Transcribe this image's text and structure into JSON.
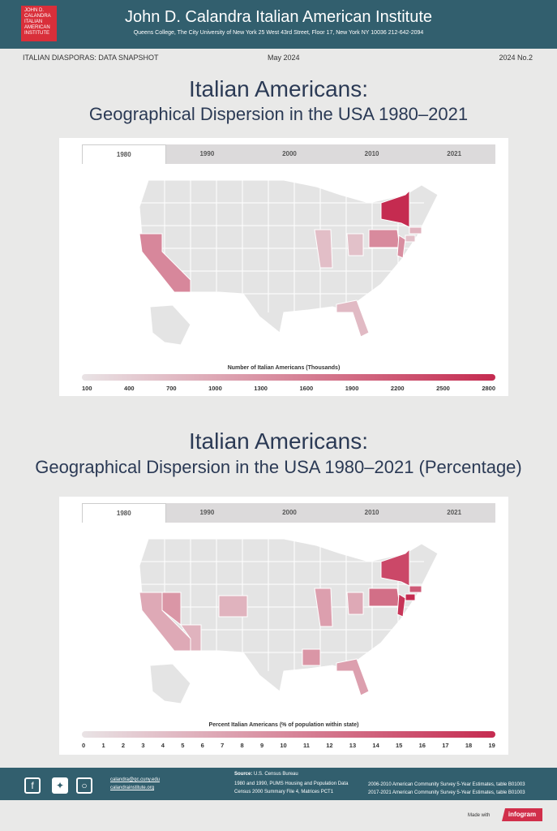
{
  "header": {
    "logo_text": [
      "JOHN D.",
      "CALANDRA",
      "ITALIAN",
      "AMERICAN",
      "INSTITUTE"
    ],
    "title": "John D. Calandra Italian American Institute",
    "subtitle": "Queens College, The City University of New York  25 West 43rd Street, Floor 17, New York NY 10036     212-642-2094"
  },
  "strip": {
    "left": "ITALIAN DIASPORAS: DATA SNAPSHOT",
    "center": "May 2024",
    "right": "2024  No.2"
  },
  "section1": {
    "title1": "Italian Americans:",
    "title2": "Geographical Dispersion in the USA 1980–2021",
    "tabs": [
      "1980",
      "1990",
      "2000",
      "2010",
      "2021"
    ],
    "active_tab": "1980",
    "legend_title": "Number of Italian Americans (Thousands)",
    "legend_ticks": [
      "100",
      "400",
      "700",
      "1000",
      "1300",
      "1600",
      "1900",
      "2200",
      "2500",
      "2800"
    ],
    "range": [
      100,
      2800
    ],
    "values": {
      "CA": 1450,
      "NY": 2800,
      "PA": 1400,
      "NJ": 1350,
      "IL": 650,
      "OH": 600,
      "FL": 700,
      "MA": 800,
      "CT": 600
    }
  },
  "section2": {
    "title1": "Italian Americans:",
    "title2": "Geographical Dispersion in the USA 1980–2021 (Percentage)",
    "tabs": [
      "1980",
      "1990",
      "2000",
      "2010",
      "2021"
    ],
    "active_tab": "1980",
    "legend_title": "Percent Italian Americans (% of population within state)",
    "legend_ticks": [
      "0",
      "1",
      "2",
      "3",
      "4",
      "5",
      "6",
      "7",
      "8",
      "9",
      "10",
      "11",
      "12",
      "13",
      "14",
      "15",
      "16",
      "17",
      "18",
      "19"
    ],
    "range": [
      0,
      19
    ],
    "values": {
      "CA": 6,
      "NY": 16,
      "PA": 12,
      "NJ": 18,
      "IL": 7,
      "OH": 6,
      "FL": 7,
      "MA": 14,
      "CT": 19,
      "NV": 8,
      "AZ": 5,
      "CO": 5,
      "LA": 8
    }
  },
  "colors": {
    "low": "#e9e3e5",
    "high": "#c52b50",
    "base": "#e4e4e4",
    "header": "#325f6e",
    "logo": "#d92f3a"
  },
  "footer": {
    "icons": [
      "facebook-icon",
      "twitter-icon",
      "instagram-icon"
    ],
    "email": "calandra@qc.cuny.edu",
    "site": "calandrainstitute.org",
    "source_label": "Source:",
    "source": "U.S. Census Bureau",
    "src1": "1980 and 1990, PUMS Housing and Population Data",
    "src2": "Census 2000 Summary File 4, Matrices PCT1",
    "src3": "2006-2010 American Community Survey 5-Year Estimates, table B01003",
    "src4": "2017-2021 American Community Survey 5-Year Estimates, table B01003"
  },
  "madewith": {
    "label": "Made with",
    "brand": "infogram"
  }
}
